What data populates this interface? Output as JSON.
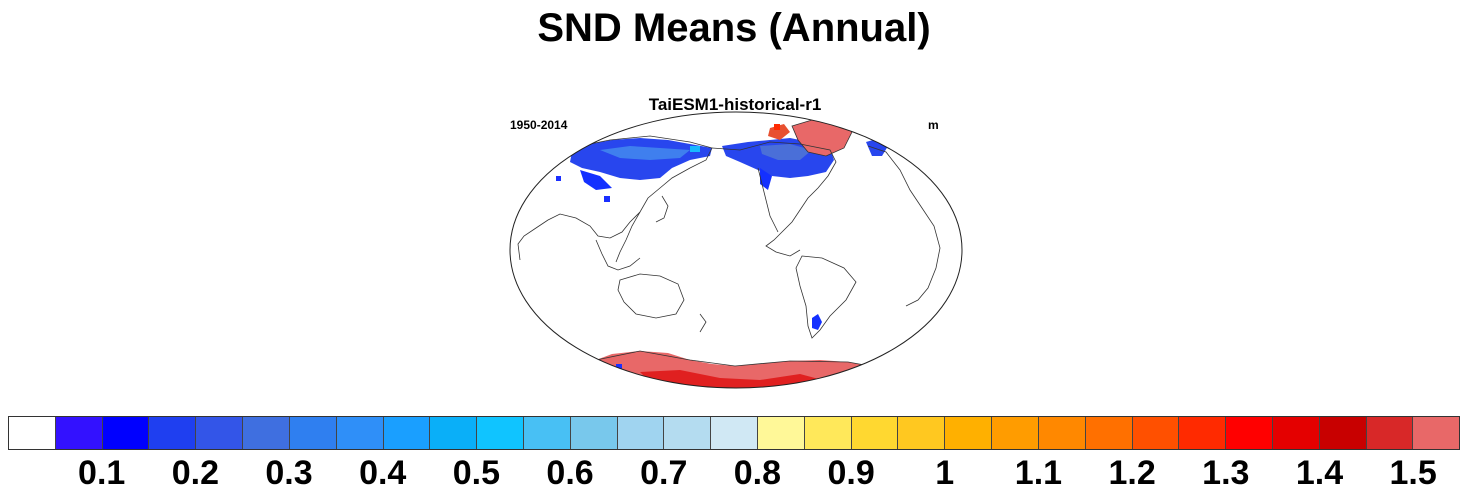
{
  "title": "SND Means (Annual)",
  "panel": {
    "title": "TaiESM1-historical-r1",
    "period": "1950-2014",
    "units": "m"
  },
  "colorbar": {
    "colors": [
      "#ffffff",
      "#3311ff",
      "#0000ff",
      "#1f3ff0",
      "#3355e8",
      "#3f6fe0",
      "#2f7ff0",
      "#2f8ff8",
      "#1a9fff",
      "#0aaff8",
      "#10c4ff",
      "#48c0f4",
      "#78c8ec",
      "#a0d4f0",
      "#b4dcf0",
      "#d0e8f4",
      "#fff898",
      "#ffe85a",
      "#ffd830",
      "#ffc820",
      "#ffb000",
      "#ff9c00",
      "#ff8800",
      "#ff7000",
      "#ff5000",
      "#ff2a00",
      "#ff0000",
      "#e40000",
      "#c80000",
      "#d82828",
      "#e86868"
    ],
    "tick_labels": [
      "0.1",
      "0.2",
      "0.3",
      "0.4",
      "0.5",
      "0.6",
      "0.7",
      "0.8",
      "0.9",
      "1",
      "1.1",
      "1.2",
      "1.3",
      "1.4",
      "1.5"
    ]
  }
}
